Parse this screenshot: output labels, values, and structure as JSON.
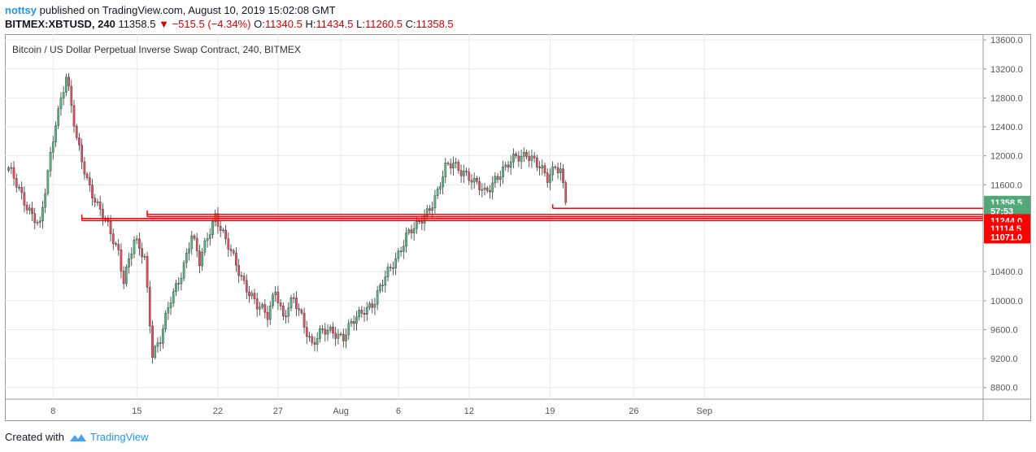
{
  "header": {
    "user": "nottsy",
    "published_text": "published on TradingView.com, August 10, 2019 15:02:08 GMT",
    "symbol": "BITMEX:XBTUSD, 240",
    "last": "11358.5",
    "change": "−515.5 (−4.34%)",
    "o_label": "O:",
    "o_value": "11340.5",
    "h_label": "H:",
    "h_value": "11434.5",
    "l_label": "L:",
    "l_value": "11260.5",
    "c_label": "C:",
    "c_value": "11358.5"
  },
  "chart_data": {
    "type": "candlestick",
    "title": "Bitcoin / US Dollar Perpetual Inverse Swap Contract, 240, BITMEX",
    "y_ticks": [
      "13600.0",
      "13200.0",
      "12800.0",
      "12400.0",
      "12000.0",
      "11600.0",
      "10400.0",
      "10000.0",
      "9600.0",
      "9200.0",
      "8800.0"
    ],
    "x_ticks": [
      "8",
      "15",
      "22",
      "27",
      "Aug",
      "6",
      "12",
      "19",
      "26",
      "Sep"
    ],
    "ylim": [
      8640,
      13680
    ],
    "grid": true,
    "price_labels": [
      {
        "text": "11358.5",
        "value": 11358.5,
        "color": "#53a87a"
      },
      {
        "text": "57:53",
        "value": 11180,
        "color": "#53a87a"
      },
      {
        "text": "11244.0",
        "value": 11244.0,
        "color": "#ff0000"
      },
      {
        "text": "11114.5",
        "value": 11114.5,
        "color": "#ff0000"
      },
      {
        "text": "11071.0",
        "value": 11071.0,
        "color": "#ff0000"
      }
    ],
    "horizontal_lines": [
      {
        "from_index": 208,
        "value": 11275,
        "color": "#ff0000"
      },
      {
        "from_index": 53,
        "value": 11190,
        "color": "#ff0000"
      },
      {
        "from_index": 53,
        "value": 11160,
        "color": "#ff0000"
      },
      {
        "from_index": 28,
        "value": 11135,
        "color": "#ff0000"
      },
      {
        "from_index": 28,
        "value": 11105,
        "color": "#ff0000"
      }
    ],
    "anchors": [
      [
        0,
        11800
      ],
      [
        6,
        11400
      ],
      [
        12,
        11000
      ],
      [
        18,
        12500
      ],
      [
        22,
        13100
      ],
      [
        26,
        12200
      ],
      [
        30,
        11700
      ],
      [
        34,
        11300
      ],
      [
        38,
        11000
      ],
      [
        42,
        10700
      ],
      [
        44,
        10300
      ],
      [
        48,
        10800
      ],
      [
        52,
        10600
      ],
      [
        55,
        9300
      ],
      [
        58,
        9450
      ],
      [
        62,
        10000
      ],
      [
        66,
        10400
      ],
      [
        70,
        10900
      ],
      [
        73,
        10500
      ],
      [
        76,
        10900
      ],
      [
        79,
        11200
      ],
      [
        83,
        10800
      ],
      [
        87,
        10500
      ],
      [
        91,
        10200
      ],
      [
        95,
        9900
      ],
      [
        99,
        9800
      ],
      [
        102,
        10200
      ],
      [
        105,
        9750
      ],
      [
        109,
        10000
      ],
      [
        112,
        9800
      ],
      [
        116,
        9400
      ],
      [
        120,
        9550
      ],
      [
        124,
        9600
      ],
      [
        128,
        9500
      ],
      [
        132,
        9700
      ],
      [
        136,
        9900
      ],
      [
        140,
        10000
      ],
      [
        144,
        10300
      ],
      [
        148,
        10600
      ],
      [
        152,
        10900
      ],
      [
        156,
        11000
      ],
      [
        160,
        11250
      ],
      [
        164,
        11500
      ],
      [
        167,
        11800
      ],
      [
        170,
        11900
      ],
      [
        174,
        11800
      ],
      [
        178,
        11600
      ],
      [
        182,
        11500
      ],
      [
        186,
        11700
      ],
      [
        190,
        11800
      ],
      [
        194,
        12000
      ],
      [
        198,
        12050
      ],
      [
        202,
        11850
      ],
      [
        206,
        11700
      ],
      [
        209,
        11900
      ],
      [
        211,
        11800
      ],
      [
        213,
        11340
      ]
    ],
    "total_slots": 374
  },
  "footer": {
    "created_with": "Created with",
    "brand": "TradingView"
  },
  "colors": {
    "up": "#53b987",
    "down": "#eb4d5c",
    "grid": "#e9e9ea",
    "line": "#ff0000"
  }
}
